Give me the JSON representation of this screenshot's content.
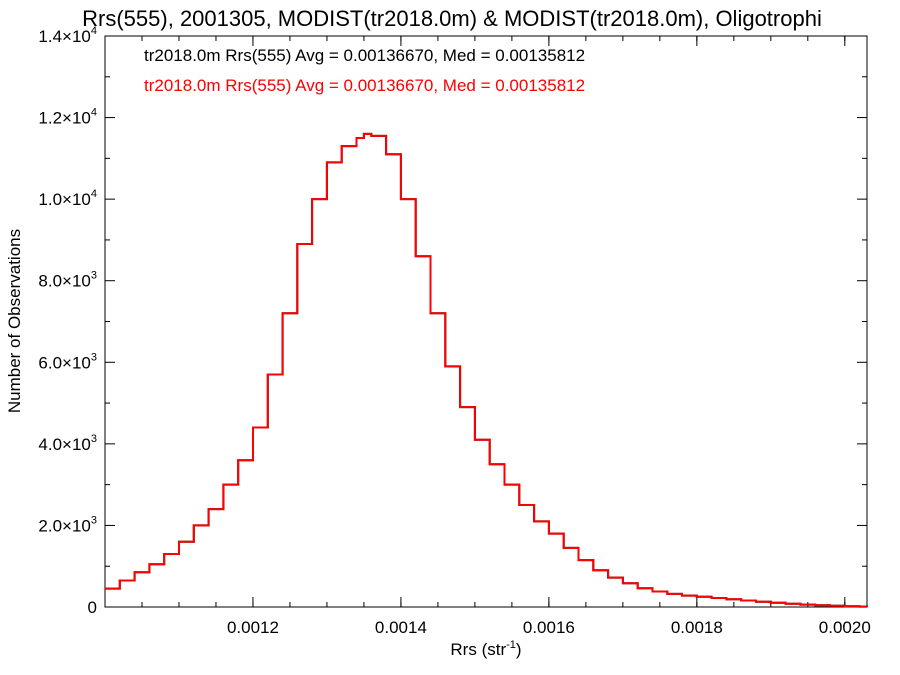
{
  "chart_data": {
    "type": "line",
    "title": "Rrs(555), 2001305, MODIST(tr2018.0m) & MODIST(tr2018.0m), Oligotrophi",
    "xlabel": "Rrs (str",
    "xlabel_sup": "-1",
    "xlabel_end": ")",
    "ylabel": "Number of Observations",
    "xlim": [
      0.001,
      0.00203
    ],
    "ylim": [
      0,
      14000
    ],
    "x_ticks": [
      {
        "value": 0.0012,
        "label": "0.0012"
      },
      {
        "value": 0.0014,
        "label": "0.0014"
      },
      {
        "value": 0.0016,
        "label": "0.0016"
      },
      {
        "value": 0.0018,
        "label": "0.0018"
      },
      {
        "value": 0.002,
        "label": "0.0020"
      }
    ],
    "y_ticks": [
      {
        "value": 0,
        "label": "0",
        "sup": ""
      },
      {
        "value": 2000,
        "label": "2.0×10",
        "sup": "3"
      },
      {
        "value": 4000,
        "label": "4.0×10",
        "sup": "3"
      },
      {
        "value": 6000,
        "label": "6.0×10",
        "sup": "3"
      },
      {
        "value": 8000,
        "label": "8.0×10",
        "sup": "3"
      },
      {
        "value": 10000,
        "label": "1.0×10",
        "sup": "4"
      },
      {
        "value": 12000,
        "label": "1.2×10",
        "sup": "4"
      },
      {
        "value": 14000,
        "label": "1.4×10",
        "sup": "4"
      }
    ],
    "grid": false,
    "legend_position": "top-left",
    "series": [
      {
        "name": "tr2018.0m Rrs(555) Avg = 0.00136670, Med = 0.00135812",
        "color": "#000000",
        "x": [
          0.001,
          0.00102,
          0.00104,
          0.00106,
          0.00108,
          0.0011,
          0.00112,
          0.00114,
          0.00116,
          0.00118,
          0.0012,
          0.00122,
          0.00124,
          0.00126,
          0.00128,
          0.0013,
          0.00132,
          0.00134,
          0.00135,
          0.00136,
          0.00138,
          0.0014,
          0.00142,
          0.00144,
          0.00146,
          0.00148,
          0.0015,
          0.00152,
          0.00154,
          0.00156,
          0.00158,
          0.0016,
          0.00162,
          0.00164,
          0.00166,
          0.00168,
          0.0017,
          0.00172,
          0.00174,
          0.00176,
          0.00178,
          0.0018,
          0.00182,
          0.00184,
          0.00186,
          0.00188,
          0.0019,
          0.00192,
          0.00194,
          0.00196,
          0.00198,
          0.002,
          0.00202,
          0.00203
        ],
        "y": [
          450,
          650,
          850,
          1050,
          1300,
          1600,
          2000,
          2400,
          3000,
          3600,
          4400,
          5700,
          7200,
          8900,
          10000,
          10900,
          11300,
          11500,
          11600,
          11550,
          11100,
          10000,
          8600,
          7200,
          5900,
          4900,
          4100,
          3500,
          3000,
          2500,
          2100,
          1800,
          1450,
          1150,
          900,
          720,
          580,
          460,
          380,
          320,
          280,
          250,
          220,
          190,
          160,
          130,
          105,
          80,
          60,
          45,
          30,
          20,
          10,
          5
        ]
      },
      {
        "name": "tr2018.0m Rrs(555) Avg = 0.00136670, Med = 0.00135812",
        "color": "#ff0000",
        "x": [
          0.001,
          0.00102,
          0.00104,
          0.00106,
          0.00108,
          0.0011,
          0.00112,
          0.00114,
          0.00116,
          0.00118,
          0.0012,
          0.00122,
          0.00124,
          0.00126,
          0.00128,
          0.0013,
          0.00132,
          0.00134,
          0.00135,
          0.00136,
          0.00138,
          0.0014,
          0.00142,
          0.00144,
          0.00146,
          0.00148,
          0.0015,
          0.00152,
          0.00154,
          0.00156,
          0.00158,
          0.0016,
          0.00162,
          0.00164,
          0.00166,
          0.00168,
          0.0017,
          0.00172,
          0.00174,
          0.00176,
          0.00178,
          0.0018,
          0.00182,
          0.00184,
          0.00186,
          0.00188,
          0.0019,
          0.00192,
          0.00194,
          0.00196,
          0.00198,
          0.002,
          0.00202,
          0.00203
        ],
        "y": [
          450,
          650,
          850,
          1050,
          1300,
          1600,
          2000,
          2400,
          3000,
          3600,
          4400,
          5700,
          7200,
          8900,
          10000,
          10900,
          11300,
          11500,
          11600,
          11550,
          11100,
          10000,
          8600,
          7200,
          5900,
          4900,
          4100,
          3500,
          3000,
          2500,
          2100,
          1800,
          1450,
          1150,
          900,
          720,
          580,
          460,
          380,
          320,
          280,
          250,
          220,
          190,
          160,
          130,
          105,
          80,
          60,
          45,
          30,
          20,
          10,
          5
        ]
      }
    ]
  }
}
